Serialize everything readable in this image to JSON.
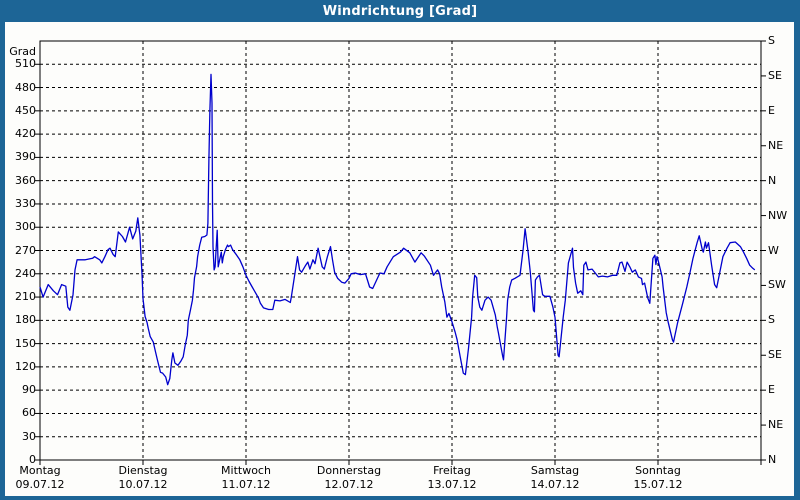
{
  "window": {
    "title": "Windrichtung [Grad]",
    "titlebar_color": "#1D6596",
    "border_color": "#1D6596",
    "background_color": "#FDFDFB"
  },
  "chart_data": {
    "type": "line",
    "title": "Windrichtung [Grad]",
    "ylabel_left": "Grad",
    "ylim": [
      0,
      540
    ],
    "xlim_days": [
      0,
      7
    ],
    "grid": true,
    "grid_color": "#000000",
    "y_ticks_left": [
      0,
      30,
      60,
      90,
      120,
      150,
      180,
      210,
      240,
      270,
      300,
      330,
      360,
      390,
      420,
      450,
      480,
      510
    ],
    "y_ticks_right": [
      {
        "deg": 0,
        "label": "N"
      },
      {
        "deg": 45,
        "label": "NE"
      },
      {
        "deg": 90,
        "label": "E"
      },
      {
        "deg": 135,
        "label": "SE"
      },
      {
        "deg": 180,
        "label": "S"
      },
      {
        "deg": 225,
        "label": "SW"
      },
      {
        "deg": 270,
        "label": "W"
      },
      {
        "deg": 315,
        "label": "NW"
      },
      {
        "deg": 360,
        "label": "N"
      },
      {
        "deg": 405,
        "label": "NE"
      },
      {
        "deg": 450,
        "label": "E"
      },
      {
        "deg": 495,
        "label": "SE"
      },
      {
        "deg": 540,
        "label": "S"
      }
    ],
    "x_ticks": [
      {
        "t": 0,
        "day": "Montag",
        "date": "09.07.12"
      },
      {
        "t": 1,
        "day": "Dienstag",
        "date": "10.07.12"
      },
      {
        "t": 2,
        "day": "Mittwoch",
        "date": "11.07.12"
      },
      {
        "t": 3,
        "day": "Donnerstag",
        "date": "12.07.12"
      },
      {
        "t": 4,
        "day": "Freitag",
        "date": "13.07.12"
      },
      {
        "t": 5,
        "day": "Samstag",
        "date": "14.07.12"
      },
      {
        "t": 6,
        "day": "Sonntag",
        "date": "15.07.12"
      }
    ],
    "series": [
      {
        "name": "Windrichtung",
        "color": "#0000CD",
        "points": [
          [
            0.0,
            223
          ],
          [
            0.03,
            210
          ],
          [
            0.08,
            226
          ],
          [
            0.13,
            218
          ],
          [
            0.17,
            213
          ],
          [
            0.21,
            226
          ],
          [
            0.25,
            224
          ],
          [
            0.27,
            197
          ],
          [
            0.29,
            193
          ],
          [
            0.32,
            213
          ],
          [
            0.34,
            245
          ],
          [
            0.36,
            258
          ],
          [
            0.44,
            258
          ],
          [
            0.51,
            260
          ],
          [
            0.53,
            262
          ],
          [
            0.58,
            258
          ],
          [
            0.6,
            254
          ],
          [
            0.63,
            262
          ],
          [
            0.66,
            271
          ],
          [
            0.68,
            273
          ],
          [
            0.71,
            265
          ],
          [
            0.73,
            262
          ],
          [
            0.76,
            294
          ],
          [
            0.8,
            288
          ],
          [
            0.83,
            281
          ],
          [
            0.87,
            300
          ],
          [
            0.9,
            285
          ],
          [
            0.93,
            295
          ],
          [
            0.95,
            312
          ],
          [
            0.97,
            290
          ],
          [
            0.99,
            240
          ],
          [
            1.0,
            208
          ],
          [
            1.02,
            185
          ],
          [
            1.04,
            177
          ],
          [
            1.05,
            170
          ],
          [
            1.07,
            159
          ],
          [
            1.1,
            152
          ],
          [
            1.12,
            140
          ],
          [
            1.14,
            129
          ],
          [
            1.17,
            113
          ],
          [
            1.19,
            112
          ],
          [
            1.22,
            107
          ],
          [
            1.24,
            97
          ],
          [
            1.26,
            105
          ],
          [
            1.28,
            129
          ],
          [
            1.29,
            138
          ],
          [
            1.31,
            125
          ],
          [
            1.34,
            122
          ],
          [
            1.37,
            128
          ],
          [
            1.39,
            133
          ],
          [
            1.41,
            148
          ],
          [
            1.43,
            161
          ],
          [
            1.44,
            180
          ],
          [
            1.46,
            193
          ],
          [
            1.48,
            206
          ],
          [
            1.49,
            219
          ],
          [
            1.5,
            235
          ],
          [
            1.52,
            249
          ],
          [
            1.53,
            262
          ],
          [
            1.55,
            277
          ],
          [
            1.57,
            287
          ],
          [
            1.6,
            288
          ],
          [
            1.62,
            290
          ],
          [
            1.63,
            305
          ],
          [
            1.64,
            387
          ],
          [
            1.65,
            451
          ],
          [
            1.66,
            497
          ],
          [
            1.67,
            460
          ],
          [
            1.675,
            331
          ],
          [
            1.68,
            275
          ],
          [
            1.69,
            245
          ],
          [
            1.7,
            249
          ],
          [
            1.72,
            296
          ],
          [
            1.73,
            249
          ],
          [
            1.75,
            262
          ],
          [
            1.76,
            268
          ],
          [
            1.77,
            254
          ],
          [
            1.78,
            262
          ],
          [
            1.8,
            271
          ],
          [
            1.82,
            277
          ],
          [
            1.83,
            275
          ],
          [
            1.85,
            277
          ],
          [
            1.87,
            271
          ],
          [
            1.91,
            264
          ],
          [
            1.94,
            258
          ],
          [
            1.97,
            249
          ],
          [
            2.0,
            238
          ],
          [
            2.03,
            230
          ],
          [
            2.06,
            223
          ],
          [
            2.12,
            209
          ],
          [
            2.14,
            202
          ],
          [
            2.17,
            196
          ],
          [
            2.22,
            194
          ],
          [
            2.26,
            194
          ],
          [
            2.28,
            206
          ],
          [
            2.33,
            205
          ],
          [
            2.38,
            207
          ],
          [
            2.43,
            203
          ],
          [
            2.44,
            210
          ],
          [
            2.5,
            262
          ],
          [
            2.52,
            245
          ],
          [
            2.54,
            242
          ],
          [
            2.58,
            251
          ],
          [
            2.6,
            255
          ],
          [
            2.62,
            246
          ],
          [
            2.65,
            258
          ],
          [
            2.67,
            253
          ],
          [
            2.7,
            273
          ],
          [
            2.74,
            249
          ],
          [
            2.76,
            246
          ],
          [
            2.79,
            262
          ],
          [
            2.82,
            275
          ],
          [
            2.84,
            258
          ],
          [
            2.86,
            242
          ],
          [
            2.89,
            234
          ],
          [
            2.93,
            229
          ],
          [
            2.96,
            228
          ],
          [
            3.0,
            234
          ],
          [
            3.02,
            240
          ],
          [
            3.06,
            241
          ],
          [
            3.11,
            239
          ],
          [
            3.16,
            240
          ],
          [
            3.2,
            223
          ],
          [
            3.23,
            221
          ],
          [
            3.3,
            241
          ],
          [
            3.34,
            240
          ],
          [
            3.37,
            249
          ],
          [
            3.43,
            262
          ],
          [
            3.5,
            268
          ],
          [
            3.53,
            273
          ],
          [
            3.59,
            267
          ],
          [
            3.64,
            255
          ],
          [
            3.7,
            267
          ],
          [
            3.73,
            263
          ],
          [
            3.79,
            251
          ],
          [
            3.82,
            238
          ],
          [
            3.86,
            245
          ],
          [
            3.88,
            240
          ],
          [
            3.9,
            223
          ],
          [
            3.93,
            204
          ],
          [
            3.95,
            184
          ],
          [
            3.97,
            189
          ],
          [
            4.0,
            178
          ],
          [
            4.03,
            165
          ],
          [
            4.05,
            155
          ],
          [
            4.08,
            133
          ],
          [
            4.11,
            112
          ],
          [
            4.13,
            110
          ],
          [
            4.16,
            144
          ],
          [
            4.19,
            184
          ],
          [
            4.2,
            210
          ],
          [
            4.22,
            238
          ],
          [
            4.24,
            235
          ],
          [
            4.25,
            210
          ],
          [
            4.27,
            197
          ],
          [
            4.29,
            193
          ],
          [
            4.32,
            206
          ],
          [
            4.35,
            210
          ],
          [
            4.38,
            206
          ],
          [
            4.42,
            187
          ],
          [
            4.44,
            171
          ],
          [
            4.45,
            164
          ],
          [
            4.49,
            135
          ],
          [
            4.5,
            129
          ],
          [
            4.53,
            184
          ],
          [
            4.54,
            206
          ],
          [
            4.56,
            223
          ],
          [
            4.58,
            232
          ],
          [
            4.61,
            234
          ],
          [
            4.66,
            238
          ],
          [
            4.69,
            271
          ],
          [
            4.71,
            298
          ],
          [
            4.74,
            267
          ],
          [
            4.76,
            242
          ],
          [
            4.79,
            193
          ],
          [
            4.8,
            191
          ],
          [
            4.81,
            232
          ],
          [
            4.83,
            236
          ],
          [
            4.85,
            238
          ],
          [
            4.88,
            213
          ],
          [
            4.9,
            211
          ],
          [
            4.95,
            211
          ],
          [
            4.98,
            197
          ],
          [
            5.0,
            184
          ],
          [
            5.02,
            151
          ],
          [
            5.03,
            135
          ],
          [
            5.04,
            133
          ],
          [
            5.08,
            184
          ],
          [
            5.1,
            206
          ],
          [
            5.13,
            254
          ],
          [
            5.17,
            273
          ],
          [
            5.18,
            248
          ],
          [
            5.2,
            228
          ],
          [
            5.22,
            215
          ],
          [
            5.25,
            218
          ],
          [
            5.27,
            213
          ],
          [
            5.28,
            251
          ],
          [
            5.3,
            255
          ],
          [
            5.32,
            245
          ],
          [
            5.36,
            246
          ],
          [
            5.39,
            241
          ],
          [
            5.42,
            236
          ],
          [
            5.46,
            237
          ],
          [
            5.51,
            236
          ],
          [
            5.56,
            238
          ],
          [
            5.6,
            238
          ],
          [
            5.63,
            254
          ],
          [
            5.65,
            255
          ],
          [
            5.68,
            243
          ],
          [
            5.7,
            255
          ],
          [
            5.73,
            248
          ],
          [
            5.75,
            242
          ],
          [
            5.78,
            245
          ],
          [
            5.81,
            236
          ],
          [
            5.84,
            234
          ],
          [
            5.85,
            226
          ],
          [
            5.87,
            228
          ],
          [
            5.9,
            209
          ],
          [
            5.92,
            202
          ],
          [
            5.95,
            260
          ],
          [
            5.97,
            264
          ],
          [
            5.98,
            252
          ],
          [
            5.99,
            262
          ],
          [
            6.0,
            258
          ],
          [
            6.04,
            236
          ],
          [
            6.05,
            223
          ],
          [
            6.08,
            190
          ],
          [
            6.1,
            177
          ],
          [
            6.14,
            155
          ],
          [
            6.15,
            152
          ],
          [
            6.19,
            177
          ],
          [
            6.24,
            202
          ],
          [
            6.28,
            223
          ],
          [
            6.31,
            241
          ],
          [
            6.34,
            260
          ],
          [
            6.38,
            280
          ],
          [
            6.4,
            289
          ],
          [
            6.43,
            271
          ],
          [
            6.44,
            268
          ],
          [
            6.46,
            281
          ],
          [
            6.47,
            273
          ],
          [
            6.49,
            280
          ],
          [
            6.52,
            251
          ],
          [
            6.55,
            226
          ],
          [
            6.57,
            222
          ],
          [
            6.6,
            242
          ],
          [
            6.63,
            262
          ],
          [
            6.67,
            273
          ],
          [
            6.7,
            280
          ],
          [
            6.75,
            281
          ],
          [
            6.8,
            275
          ],
          [
            6.83,
            268
          ],
          [
            6.86,
            260
          ],
          [
            6.89,
            251
          ],
          [
            6.92,
            247
          ],
          [
            6.94,
            245
          ]
        ]
      }
    ]
  }
}
